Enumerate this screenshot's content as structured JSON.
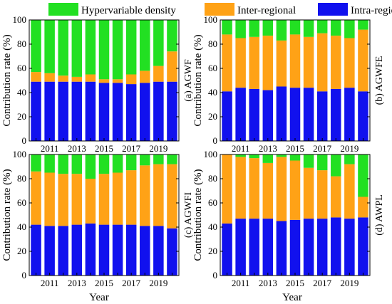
{
  "legend": [
    {
      "key": "hypervariable",
      "label": "Hypervariable density",
      "color": "#22e022"
    },
    {
      "key": "inter",
      "label": "Inter-regional",
      "color": "#ffa216"
    },
    {
      "key": "intra",
      "label": "Intra-regional",
      "color": "#1111ee"
    }
  ],
  "axes_text": {
    "ylabel": "Contribution rate (%)",
    "xlabel": "Year"
  },
  "chart_data": [
    {
      "type": "bar",
      "stacked": true,
      "panel_label": "(a) AGWF",
      "categories": [
        "2010",
        "2011",
        "2012",
        "2013",
        "2014",
        "2015",
        "2016",
        "2017",
        "2018",
        "2019",
        "2020"
      ],
      "x_tick_labels": [
        "2011",
        "2013",
        "2015",
        "2017",
        "2019"
      ],
      "y_ticks": [
        "0",
        "20",
        "40",
        "60",
        "80",
        "100"
      ],
      "ylim": [
        0,
        100
      ],
      "series": [
        {
          "name": "Intra-regional",
          "values": [
            49,
            49,
            49,
            49,
            49,
            48,
            48,
            47,
            48,
            49,
            49
          ]
        },
        {
          "name": "Inter-regional",
          "values": [
            8,
            7,
            5,
            4,
            6,
            3,
            3,
            8,
            10,
            13,
            25
          ]
        },
        {
          "name": "Hypervariable density",
          "values": [
            43,
            44,
            46,
            47,
            45,
            49,
            49,
            45,
            42,
            38,
            26
          ]
        }
      ]
    },
    {
      "type": "bar",
      "stacked": true,
      "panel_label": "(b) AGWFE",
      "categories": [
        "2010",
        "2011",
        "2012",
        "2013",
        "2014",
        "2015",
        "2016",
        "2017",
        "2018",
        "2019",
        "2020"
      ],
      "x_tick_labels": [
        "2011",
        "2013",
        "2015",
        "2017",
        "2019"
      ],
      "y_ticks": [
        "0",
        "20",
        "40",
        "60",
        "80",
        "100"
      ],
      "ylim": [
        0,
        100
      ],
      "series": [
        {
          "name": "Intra-regional",
          "values": [
            41,
            44,
            43,
            42,
            45,
            44,
            44,
            41,
            43,
            44,
            41
          ]
        },
        {
          "name": "Inter-regional",
          "values": [
            47,
            41,
            43,
            45,
            38,
            44,
            42,
            48,
            44,
            41,
            51
          ]
        },
        {
          "name": "Hypervariable density",
          "values": [
            12,
            15,
            14,
            13,
            17,
            12,
            14,
            11,
            13,
            15,
            8
          ]
        }
      ]
    },
    {
      "type": "bar",
      "stacked": true,
      "panel_label": "(c) AGWFI",
      "categories": [
        "2010",
        "2011",
        "2012",
        "2013",
        "2014",
        "2015",
        "2016",
        "2017",
        "2018",
        "2019",
        "2020"
      ],
      "x_tick_labels": [
        "2011",
        "2013",
        "2015",
        "2017",
        "2019"
      ],
      "y_ticks": [
        "0",
        "20",
        "40",
        "60",
        "80",
        "100"
      ],
      "ylim": [
        0,
        100
      ],
      "series": [
        {
          "name": "Intra-regional",
          "values": [
            42,
            41,
            41,
            42,
            43,
            42,
            42,
            42,
            41,
            41,
            39
          ]
        },
        {
          "name": "Inter-regional",
          "values": [
            44,
            44,
            43,
            42,
            37,
            42,
            43,
            45,
            50,
            51,
            53
          ]
        },
        {
          "name": "Hypervariable density",
          "values": [
            14,
            15,
            16,
            16,
            20,
            16,
            15,
            13,
            9,
            8,
            8
          ]
        }
      ]
    },
    {
      "type": "bar",
      "stacked": true,
      "panel_label": "(d) AWPL",
      "categories": [
        "2010",
        "2011",
        "2012",
        "2013",
        "2014",
        "2015",
        "2016",
        "2017",
        "2018",
        "2019",
        "2020"
      ],
      "x_tick_labels": [
        "2011",
        "2013",
        "2015",
        "2017",
        "2019"
      ],
      "y_ticks": [
        "0",
        "20",
        "40",
        "60",
        "80",
        "100"
      ],
      "ylim": [
        0,
        100
      ],
      "series": [
        {
          "name": "Intra-regional",
          "values": [
            43,
            47,
            47,
            47,
            45,
            46,
            47,
            47,
            48,
            47,
            48
          ]
        },
        {
          "name": "Inter-regional",
          "values": [
            57,
            51,
            50,
            46,
            53,
            49,
            42,
            40,
            34,
            45,
            17
          ]
        },
        {
          "name": "Hypervariable density",
          "values": [
            0,
            2,
            3,
            7,
            2,
            5,
            11,
            13,
            18,
            8,
            35
          ]
        }
      ]
    }
  ]
}
